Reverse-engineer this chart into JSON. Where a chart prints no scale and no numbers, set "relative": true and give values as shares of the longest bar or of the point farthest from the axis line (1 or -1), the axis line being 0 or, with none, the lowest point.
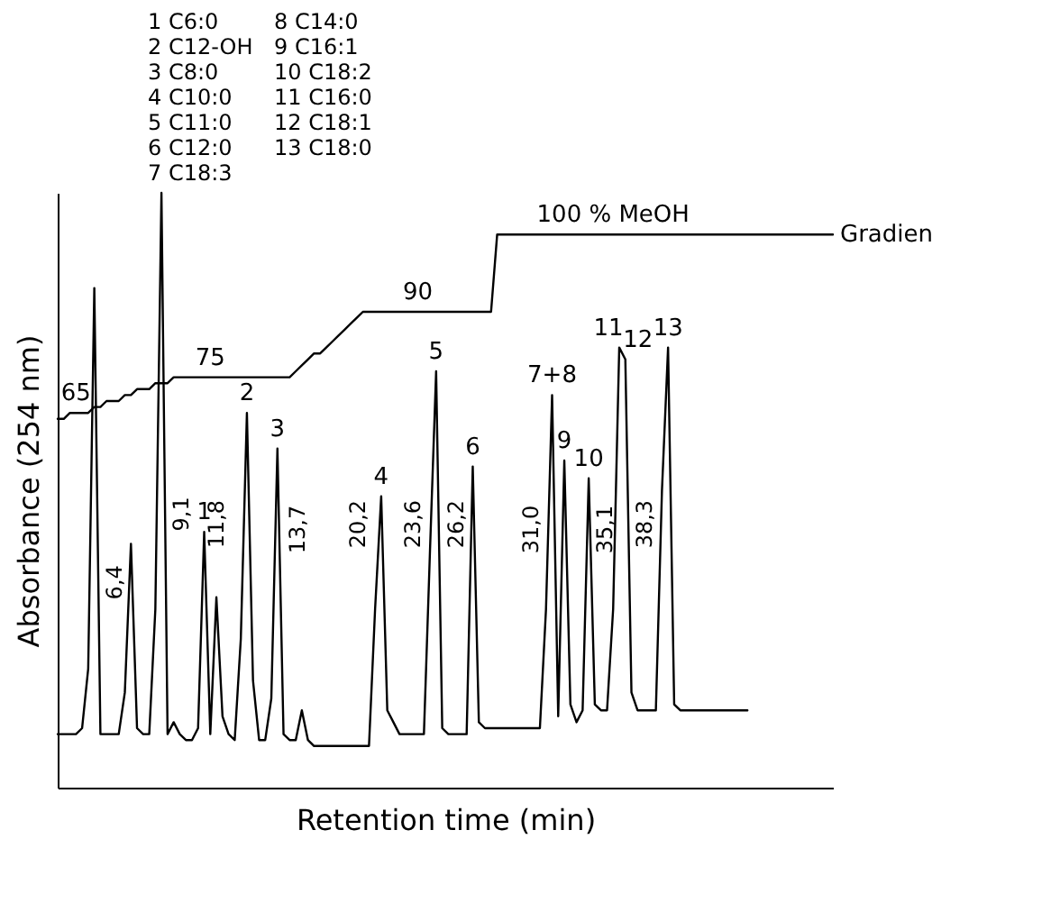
{
  "chart_data": {
    "type": "line",
    "relative": true,
    "xlabel": "Retention time (min)",
    "ylabel": "Absorbance (254 nm)",
    "marker": "none",
    "categories": [
      null,
      null,
      null,
      null,
      null,
      null,
      null,
      null,
      null,
      null,
      null,
      null,
      null,
      null,
      null,
      null,
      null,
      null,
      null,
      null,
      null,
      null,
      null,
      null,
      null,
      null,
      null,
      null,
      null,
      null,
      null,
      null,
      null,
      null,
      null,
      null,
      null,
      null,
      null,
      null,
      null,
      null,
      null,
      null,
      null,
      null,
      null,
      null,
      null,
      null,
      null,
      null,
      null,
      null,
      null,
      null,
      null,
      null,
      null,
      null,
      null,
      null,
      null,
      null,
      null,
      null,
      null,
      null,
      null,
      null,
      null,
      null,
      null,
      null,
      null,
      null,
      null,
      null,
      null,
      null,
      null,
      null,
      null,
      null,
      null,
      null,
      null,
      null,
      null,
      null,
      null,
      null,
      null,
      null,
      null,
      null,
      null,
      null,
      null,
      null,
      null,
      null,
      null,
      null,
      null,
      null,
      null,
      null,
      null,
      null,
      null,
      null,
      null,
      null,
      null,
      null,
      null,
      null,
      null,
      null,
      null,
      null,
      null,
      null,
      null,
      null,
      null,
      null
    ],
    "series": [
      {
        "color": "#000000",
        "values": [
          0.09,
          0.09,
          0.09,
          0.09,
          0.1,
          0.2,
          0.84,
          0.09,
          0.09,
          0.09,
          0.09,
          0.16,
          0.41,
          0.1,
          0.09,
          0.09,
          0.3,
          1,
          0.09,
          0.11,
          0.09,
          0.08,
          0.08,
          0.1,
          0.43,
          0.09,
          0.32,
          0.12,
          0.09,
          0.08,
          0.25,
          0.63,
          0.18,
          0.08,
          0.08,
          0.15,
          0.57,
          0.09,
          0.08,
          0.08,
          0.13,
          0.08,
          0.07,
          0.07,
          0.07,
          0.07,
          0.07,
          0.07,
          0.07,
          0.07,
          0.07,
          0.07,
          0.3,
          0.49,
          0.13,
          0.11,
          0.09,
          0.09,
          0.09,
          0.09,
          0.09,
          0.4,
          0.7,
          0.1,
          0.09,
          0.09,
          0.09,
          0.09,
          0.54,
          0.11,
          0.1,
          0.1,
          0.1,
          0.1,
          0.1,
          0.1,
          0.1,
          0.1,
          0.1,
          0.1,
          0.3,
          0.66,
          0.12,
          0.55,
          0.14,
          0.11,
          0.13,
          0.52,
          0.14,
          0.13,
          0.13,
          0.3,
          0.74,
          0.72,
          0.16,
          0.13,
          0.13,
          0.13,
          0.13,
          0.5,
          0.74,
          0.14,
          0.13,
          0.13,
          0.13,
          0.13,
          0.13,
          0.13,
          0.13,
          0.13,
          0.13,
          0.13,
          0.13,
          0.13,
          null,
          null,
          null,
          null,
          null,
          null,
          null,
          null,
          null,
          null,
          null,
          null,
          null,
          null
        ]
      },
      {
        "name": "Gradien",
        "color": "#000000",
        "values": [
          0.62,
          0.62,
          0.63,
          0.63,
          0.63,
          0.63,
          0.64,
          0.64,
          0.65,
          0.65,
          0.65,
          0.66,
          0.66,
          0.67,
          0.67,
          0.67,
          0.68,
          0.68,
          0.68,
          0.69,
          0.69,
          0.69,
          0.69,
          0.69,
          0.69,
          0.69,
          0.69,
          0.69,
          0.69,
          0.69,
          0.69,
          0.69,
          0.69,
          0.69,
          0.69,
          0.69,
          0.69,
          0.69,
          0.69,
          0.7,
          0.71,
          0.72,
          0.73,
          0.73,
          0.74,
          0.75,
          0.76,
          0.77,
          0.78,
          0.79,
          0.8,
          0.8,
          0.8,
          0.8,
          0.8,
          0.8,
          0.8,
          0.8,
          0.8,
          0.8,
          0.8,
          0.8,
          0.8,
          0.8,
          0.8,
          0.8,
          0.8,
          0.8,
          0.8,
          0.8,
          0.8,
          0.8,
          0.93,
          0.93,
          0.93,
          0.93,
          0.93,
          0.93,
          0.93,
          0.93,
          0.93,
          0.93,
          0.93,
          0.93,
          0.93,
          0.93,
          0.93,
          0.93,
          0.93,
          0.93,
          0.93,
          0.93,
          0.93,
          0.93,
          0.93,
          0.93,
          0.93,
          0.93,
          0.93,
          0.93,
          0.93,
          0.93,
          0.93,
          0.93,
          0.93,
          0.93,
          0.93,
          0.93,
          0.93,
          0.93,
          0.93,
          0.93,
          0.93,
          0.93,
          0.93,
          0.93,
          0.93,
          0.93,
          0.93,
          0.93,
          0.93,
          0.93,
          0.93,
          0.93,
          0.93,
          0.93,
          0.93,
          0.93
        ]
      }
    ],
    "annotations": [
      "1 C6:0",
      "2 C12-OH",
      "3 C8:0",
      "4 C10:0",
      "5 C11:0",
      "6 C12:0",
      "7 C18:3",
      "8 C14:0",
      "9 C16:1",
      "10 C18:2",
      "11 C16:0",
      "12 C18:1",
      "13 C18:0",
      "6,4",
      "9,1",
      "11,8",
      "13,7",
      "20,2",
      "23,6",
      "26,2",
      "31,0",
      "35,1",
      "38,3",
      "1",
      "2",
      "3",
      "4",
      "5",
      "6",
      "7+8",
      "9",
      "10",
      "11",
      "12",
      "13",
      "65",
      "75",
      "90",
      "100 % MeOH"
    ]
  }
}
